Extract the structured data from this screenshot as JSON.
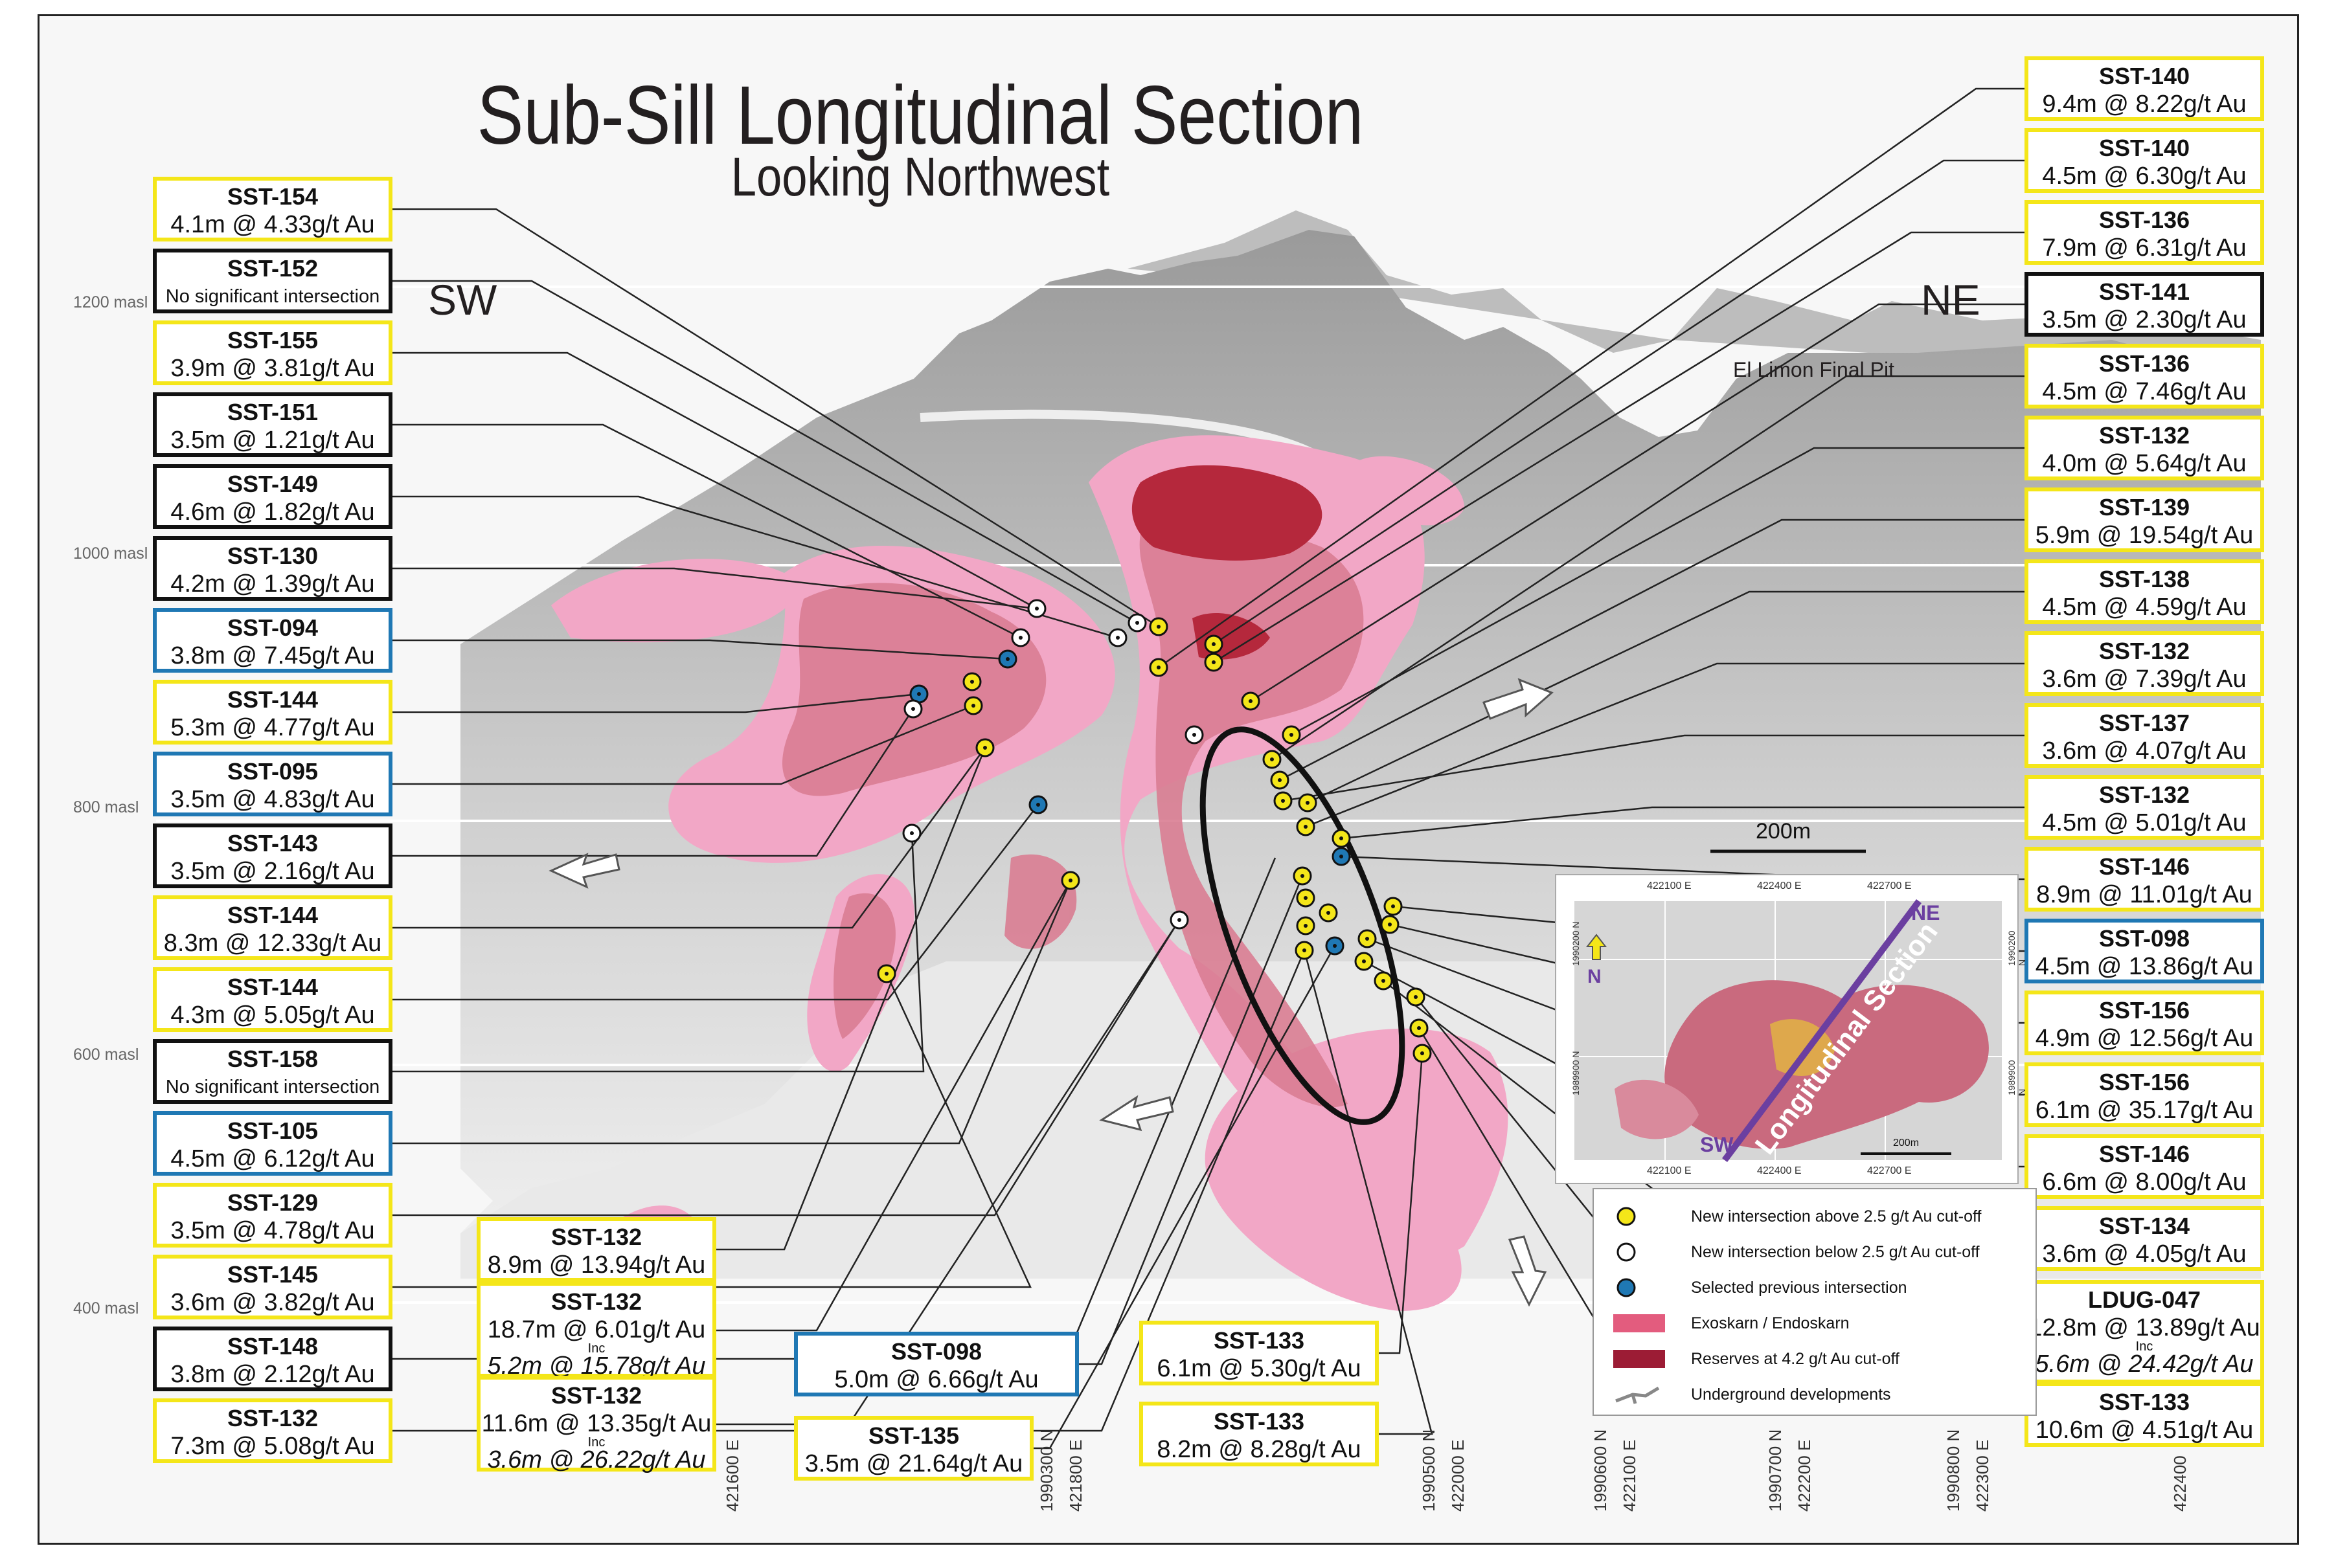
{
  "title": "Sub-Sill Longitudinal Section",
  "subtitle": "Looking Northwest",
  "direction_left": "SW",
  "direction_right": "NE",
  "pit_label": "El Limon Final Pit",
  "scale_bar_label": "200m",
  "elevations": [
    "1200 masl",
    "1000 masl",
    "800 masl",
    "600 masl",
    "400 masl"
  ],
  "bottom_coords": [
    "421600 E",
    "1990300 N",
    "421800 E",
    "1990500 N",
    "422000 E",
    "1990600 N",
    "422100 E",
    "1990700 N",
    "422200 E",
    "1990800 N",
    "422300 E",
    "422400"
  ],
  "left_boxes": [
    {
      "hole": "SST-154",
      "result": "4.1m @ 4.33g/t Au",
      "color": "yellow"
    },
    {
      "hole": "SST-152",
      "result": "No significant intersection",
      "color": "black",
      "small": true
    },
    {
      "hole": "SST-155",
      "result": "3.9m @ 3.81g/t Au",
      "color": "yellow"
    },
    {
      "hole": "SST-151",
      "result": "3.5m @ 1.21g/t Au",
      "color": "black"
    },
    {
      "hole": "SST-149",
      "result": "4.6m @ 1.82g/t Au",
      "color": "black"
    },
    {
      "hole": "SST-130",
      "result": "4.2m @ 1.39g/t Au",
      "color": "black"
    },
    {
      "hole": "SST-094",
      "result": "3.8m @ 7.45g/t Au",
      "color": "blue"
    },
    {
      "hole": "SST-144",
      "result": "5.3m @ 4.77g/t Au",
      "color": "yellow"
    },
    {
      "hole": "SST-095",
      "result": "3.5m @ 4.83g/t Au",
      "color": "blue"
    },
    {
      "hole": "SST-143",
      "result": "3.5m @ 2.16g/t Au",
      "color": "black"
    },
    {
      "hole": "SST-144",
      "result": "8.3m @ 12.33g/t Au",
      "color": "yellow"
    },
    {
      "hole": "SST-144",
      "result": "4.3m @ 5.05g/t Au",
      "color": "yellow"
    },
    {
      "hole": "SST-158",
      "result": "No significant intersection",
      "color": "black",
      "small": true
    },
    {
      "hole": "SST-105",
      "result": "4.5m @ 6.12g/t Au",
      "color": "blue"
    },
    {
      "hole": "SST-129",
      "result": "3.5m @ 4.78g/t Au",
      "color": "yellow"
    },
    {
      "hole": "SST-145",
      "result": "3.6m @ 3.82g/t Au",
      "color": "yellow"
    },
    {
      "hole": "SST-148",
      "result": "3.8m @ 2.12g/t Au",
      "color": "black"
    },
    {
      "hole": "SST-132",
      "result": "7.3m @ 5.08g/t Au",
      "color": "yellow"
    }
  ],
  "right_boxes": [
    {
      "hole": "SST-140",
      "result": "9.4m @ 8.22g/t Au",
      "color": "yellow"
    },
    {
      "hole": "SST-140",
      "result": "4.5m @ 6.30g/t Au",
      "color": "yellow"
    },
    {
      "hole": "SST-136",
      "result": "7.9m @ 6.31g/t Au",
      "color": "yellow"
    },
    {
      "hole": "SST-141",
      "result": "3.5m @ 2.30g/t Au",
      "color": "black"
    },
    {
      "hole": "SST-136",
      "result": "4.5m @ 7.46g/t Au",
      "color": "yellow"
    },
    {
      "hole": "SST-132",
      "result": "4.0m @ 5.64g/t Au",
      "color": "yellow"
    },
    {
      "hole": "SST-139",
      "result": "5.9m @ 19.54g/t Au",
      "color": "yellow"
    },
    {
      "hole": "SST-138",
      "result": "4.5m @ 4.59g/t Au",
      "color": "yellow"
    },
    {
      "hole": "SST-132",
      "result": "3.6m @ 7.39g/t Au",
      "color": "yellow"
    },
    {
      "hole": "SST-137",
      "result": "3.6m @ 4.07g/t Au",
      "color": "yellow"
    },
    {
      "hole": "SST-132",
      "result": "4.5m @ 5.01g/t Au",
      "color": "yellow"
    },
    {
      "hole": "SST-146",
      "result": "8.9m @ 11.01g/t Au",
      "color": "yellow"
    },
    {
      "hole": "SST-098",
      "result": "4.5m @ 13.86g/t Au",
      "color": "blue"
    },
    {
      "hole": "SST-156",
      "result": "4.9m @ 12.56g/t Au",
      "color": "yellow"
    },
    {
      "hole": "SST-156",
      "result": "6.1m @ 35.17g/t Au",
      "color": "yellow"
    },
    {
      "hole": "SST-146",
      "result": "6.6m @ 8.00g/t Au",
      "color": "yellow"
    },
    {
      "hole": "SST-134",
      "result": "3.6m @ 4.05g/t Au",
      "color": "yellow"
    }
  ],
  "right_tall_box": {
    "hole": "LDUG-047",
    "result": "12.8m @ 13.89g/t Au",
    "inc": "Inc",
    "sub": "5.6m @ 24.42g/t Au",
    "color": "yellow"
  },
  "right_last_box": {
    "hole": "SST-133",
    "result": "10.6m @ 4.51g/t Au",
    "color": "yellow"
  },
  "bottom_boxes": {
    "b1": {
      "hole": "SST-132",
      "result": "8.9m @ 13.94g/t Au",
      "color": "yellow"
    },
    "b2": {
      "hole": "SST-132",
      "result": "18.7m @ 6.01g/t Au",
      "inc": "Inc",
      "sub": "5.2m @ 15.78g/t Au",
      "color": "yellow"
    },
    "b3": {
      "hole": "SST-132",
      "result": "11.6m @ 13.35g/t Au",
      "inc": "Inc",
      "sub": "3.6m @ 26.22g/t Au",
      "color": "yellow"
    },
    "b4": {
      "hole": "SST-098",
      "result": "5.0m @ 6.66g/t Au",
      "color": "blue"
    },
    "b5": {
      "hole": "SST-135",
      "result": "3.5m @ 21.64g/t Au",
      "color": "yellow"
    },
    "b6": {
      "hole": "SST-133",
      "result": "6.1m @ 5.30g/t Au",
      "color": "yellow"
    },
    "b7": {
      "hole": "SST-133",
      "result": "8.2m @ 8.28g/t Au",
      "color": "yellow"
    }
  },
  "inset": {
    "coords_top": [
      "422100 E",
      "422400 E",
      "422700 E"
    ],
    "coords_bottom": [
      "422100 E",
      "422400 E",
      "422700 E"
    ],
    "coords_side": [
      "1990200 N",
      "1989900 N",
      "1990200 N",
      "1989900 N"
    ],
    "north": "N",
    "section_label": "Longitudinal Section",
    "ne": "NE",
    "sw": "SW",
    "scale": "200m"
  },
  "legend": [
    {
      "symbol": "yellow-dot",
      "text": "New intersection above 2.5 g/t Au cut-off"
    },
    {
      "symbol": "white-dot",
      "text": "New intersection below 2.5 g/t Au cut-off"
    },
    {
      "symbol": "blue-dot",
      "text": "Selected previous intersection"
    },
    {
      "symbol": "pink-swatch",
      "text": "Exoskarn / Endoskarn"
    },
    {
      "symbol": "red-swatch",
      "text": "Reserves at 4.2 g/t Au cut-off"
    },
    {
      "symbol": "tunnel-icon",
      "text": "Underground developments"
    }
  ],
  "colors": {
    "yellow": "#f4e619",
    "blue": "#1f78b4",
    "pink": "#f2a7c6",
    "red": "#c1323f",
    "gray": "#9d9d9d"
  }
}
